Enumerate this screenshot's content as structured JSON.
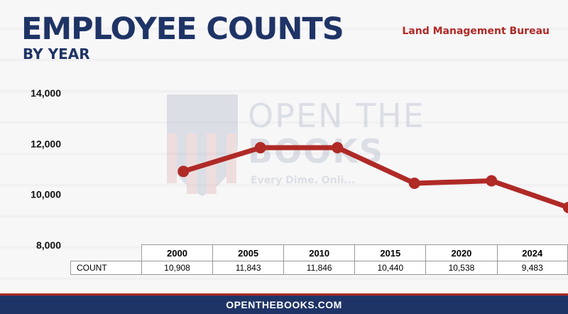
{
  "header": {
    "title": "EMPLOYEE COUNTS",
    "subtitle": "BY YEAR",
    "agency": "Land Management Bureau"
  },
  "watermark": {
    "line1": "OPEN THE",
    "line2": "BOOKS",
    "tagline": "Every Dime. Onli..."
  },
  "footer": {
    "url": "OPENTHEBOOKS.COM"
  },
  "colors": {
    "navy": "#1f3466",
    "red": "#b02a26"
  },
  "chart_data": {
    "type": "line",
    "title": "EMPLOYEE COUNTS",
    "subtitle": "BY YEAR",
    "categories": [
      "2000",
      "2005",
      "2010",
      "2015",
      "2020",
      "2024"
    ],
    "series": [
      {
        "values": [
          10908,
          11843,
          11846,
          10440,
          10538,
          9483
        ]
      }
    ],
    "yticks": [
      "14,000",
      "12,000",
      "10,000",
      "8,000"
    ],
    "ytick_values": [
      14000,
      12000,
      10000,
      8000
    ],
    "ylim": [
      8000,
      14000
    ],
    "grid": false,
    "table": {
      "row_label": "COUNT",
      "values": [
        "10,908",
        "11,843",
        "11,846",
        "10,440",
        "10,538",
        "9,483"
      ]
    }
  }
}
